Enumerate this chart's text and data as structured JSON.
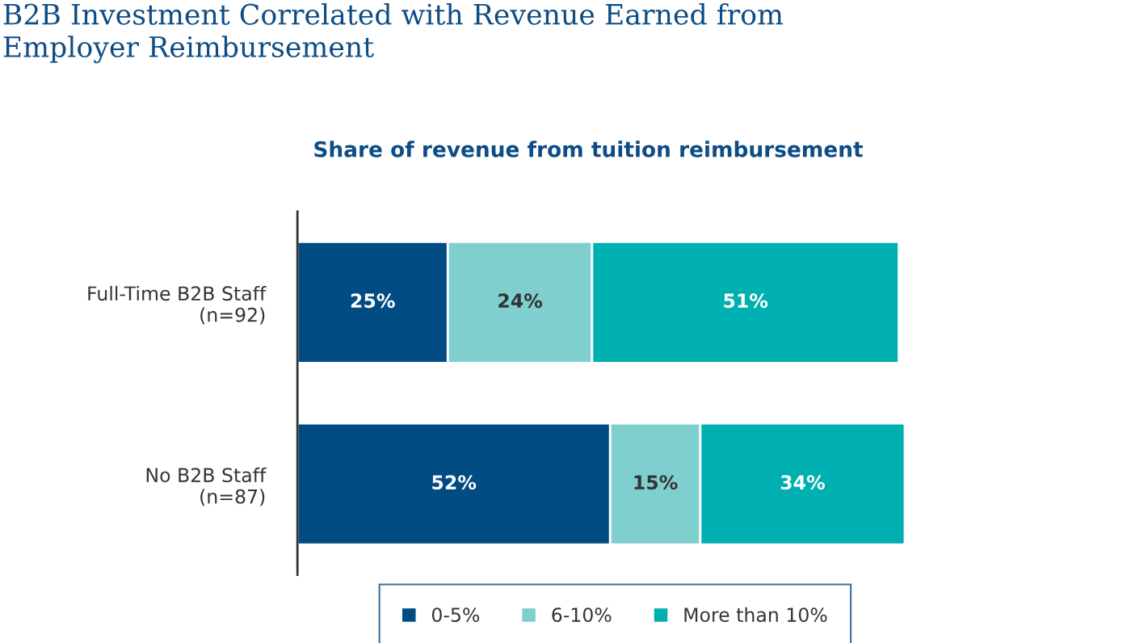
{
  "chart_data": {
    "type": "bar",
    "orientation": "horizontal",
    "stacked": true,
    "title": "B2B Investment Correlated with Revenue Earned from\nEmployer Reimbursement",
    "subtitle": "Share of revenue from tuition reimbursement",
    "categories": [
      "Full-Time B2B Staff\n(n=92)",
      "No B2B Staff\n(n=87)"
    ],
    "series": [
      {
        "name": "0-5%",
        "color": "#024c84",
        "values": [
          25,
          52
        ],
        "value_labels": [
          "25%",
          "52%"
        ]
      },
      {
        "name": "6-10%",
        "color": "#80cfcf",
        "values": [
          24,
          15
        ],
        "value_labels": [
          "24%",
          "15%"
        ]
      },
      {
        "name": "More than 10%",
        "color": "#00b0b0",
        "values": [
          51,
          34
        ],
        "value_labels": [
          "51%",
          "34%"
        ]
      }
    ],
    "legend": "bottom",
    "grid": false
  }
}
